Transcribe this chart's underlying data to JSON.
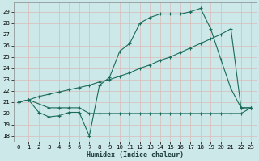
{
  "title": "",
  "xlabel": "Humidex (Indice chaleur)",
  "bg_color": "#cce8e8",
  "grid_color": "#aacccc",
  "line_color": "#1a6b5a",
  "xlim": [
    -0.5,
    23.5
  ],
  "ylim": [
    17.5,
    29.8
  ],
  "xticks": [
    0,
    1,
    2,
    3,
    4,
    5,
    6,
    7,
    8,
    9,
    10,
    11,
    12,
    13,
    14,
    15,
    16,
    17,
    18,
    19,
    20,
    21,
    22,
    23
  ],
  "yticks": [
    18,
    19,
    20,
    21,
    22,
    23,
    24,
    25,
    26,
    27,
    28,
    29
  ],
  "line1_x": [
    0,
    1,
    2,
    3,
    4,
    5,
    6,
    7,
    8,
    9,
    10,
    11,
    12,
    13,
    14,
    15,
    16,
    17,
    18,
    19,
    20,
    21,
    22,
    23
  ],
  "line1_y": [
    21.0,
    21.2,
    20.1,
    19.7,
    19.8,
    20.1,
    20.1,
    18.0,
    22.5,
    23.2,
    25.5,
    26.2,
    28.0,
    28.5,
    28.8,
    28.8,
    28.8,
    29.0,
    29.3,
    27.5,
    24.8,
    22.2,
    20.5,
    20.5
  ],
  "line2_x": [
    0,
    1,
    3,
    4,
    5,
    6,
    7,
    8,
    9,
    10,
    11,
    12,
    13,
    14,
    15,
    16,
    17,
    18,
    19,
    20,
    21,
    22,
    23
  ],
  "line2_y": [
    21.0,
    21.2,
    20.5,
    20.5,
    20.5,
    20.5,
    20.0,
    20.0,
    20.0,
    20.0,
    20.0,
    20.0,
    20.0,
    20.0,
    20.0,
    20.0,
    20.0,
    20.0,
    20.0,
    20.0,
    20.0,
    20.0,
    20.5
  ],
  "line3_x": [
    0,
    1,
    2,
    3,
    4,
    5,
    6,
    7,
    8,
    9,
    10,
    11,
    12,
    13,
    14,
    15,
    16,
    17,
    18,
    19,
    20,
    21,
    22,
    23
  ],
  "line3_y": [
    21.0,
    21.2,
    21.5,
    21.7,
    21.9,
    22.1,
    22.3,
    22.5,
    22.8,
    23.0,
    23.3,
    23.6,
    24.0,
    24.3,
    24.7,
    25.0,
    25.4,
    25.8,
    26.2,
    26.6,
    27.0,
    27.5,
    20.5,
    20.5
  ]
}
